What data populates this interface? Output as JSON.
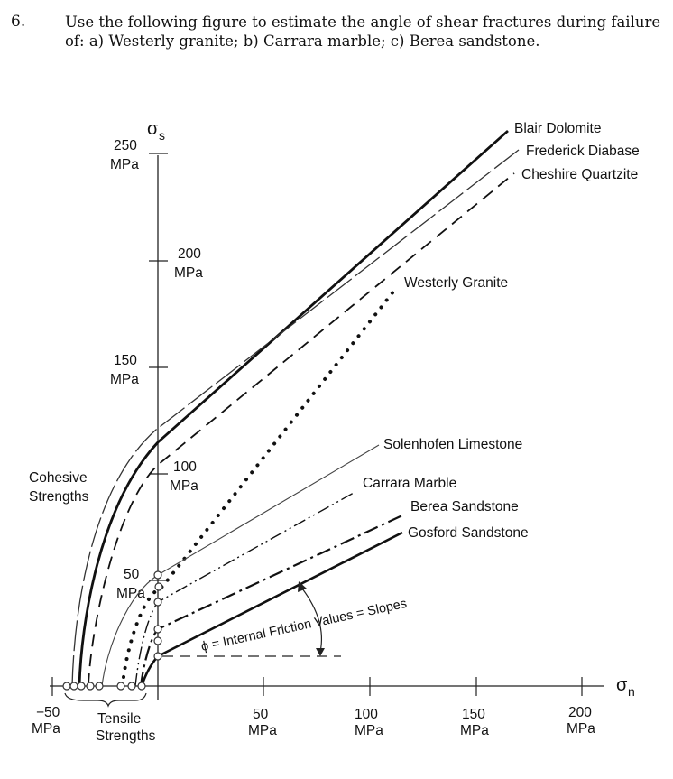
{
  "question": {
    "number": "6.",
    "text": "Use the following figure to estimate the angle of shear fractures during failure of: a) Westerly granite; b) Carrara marble; c) Berea sandstone."
  },
  "figure": {
    "y_axis_symbol": "σ",
    "y_axis_subscript": "s",
    "x_axis_symbol": "σ",
    "x_axis_subscript": "n",
    "y_ticks": [
      {
        "value": "250",
        "unit": "MPa"
      },
      {
        "value": "200",
        "unit": "MPa"
      },
      {
        "value": "150",
        "unit": "MPa"
      },
      {
        "value": "100",
        "unit": "MPa"
      },
      {
        "value": "50",
        "unit": "MPa"
      }
    ],
    "x_ticks": [
      {
        "value": "−50",
        "unit": "MPa"
      },
      {
        "value": "50",
        "unit": "MPa"
      },
      {
        "value": "100",
        "unit": "MPa"
      },
      {
        "value": "150",
        "unit": "MPa"
      },
      {
        "value": "200",
        "unit": "MPa"
      }
    ],
    "labels": {
      "cohesive_1": "Cohesive",
      "cohesive_2": "Strengths",
      "tensile_1": "Tensile",
      "tensile_2": "Strengths",
      "friction": "ϕ = Internal Friction Values = Slopes"
    },
    "rocks": {
      "blair": "Blair Dolomite",
      "frederick": "Frederick Diabase",
      "cheshire": "Cheshire Quartzite",
      "westerly": "Westerly Granite",
      "solenhofen": "Solenhofen Limestone",
      "carrara": "Carrara Marble",
      "berea": "Berea Sandstone",
      "gosford": "Gosford Sandstone"
    }
  }
}
